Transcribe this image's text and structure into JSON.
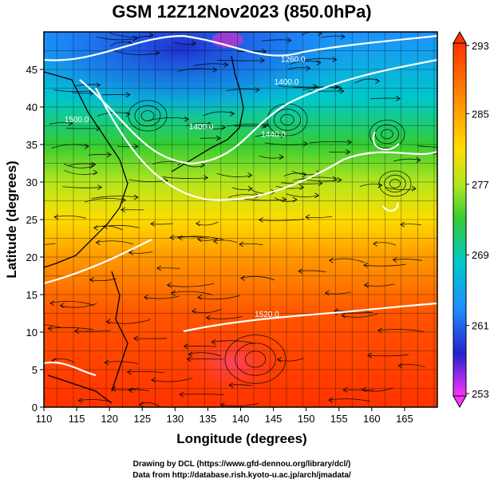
{
  "title": "GSM 12Z12Nov2023 (850.0hPa)",
  "chart_data": {
    "type": "heatmap",
    "title": "GSM 12Z12Nov2023 (850.0hPa)",
    "xlabel": "Longitude (degrees)",
    "ylabel": "Latitude (degrees)",
    "xlim": [
      110,
      170
    ],
    "ylim": [
      0,
      50
    ],
    "x_ticks": [
      "110",
      "115",
      "120",
      "125",
      "130",
      "135",
      "140",
      "145",
      "150",
      "155",
      "160",
      "165"
    ],
    "y_ticks": [
      "0",
      "5",
      "10",
      "15",
      "20",
      "25",
      "30",
      "35",
      "40",
      "45"
    ],
    "colorbar": {
      "min": 253,
      "max": 293,
      "tick_labels": [
        "293",
        "285",
        "277",
        "269",
        "261",
        "253"
      ],
      "stops": [
        "#ff33ff",
        "#2222cc",
        "#1e90ff",
        "#00c8c8",
        "#33cc33",
        "#b4e61e",
        "#ffdc00",
        "#ff9900",
        "#ff3300"
      ]
    },
    "contours": [
      {
        "label": "1260.0",
        "lon": 148,
        "lat": 46
      },
      {
        "label": "1400.0",
        "lon": 147,
        "lat": 43
      },
      {
        "label": "1400.0",
        "lon": 134,
        "lat": 37
      },
      {
        "label": "1440.0",
        "lon": 145,
        "lat": 36
      },
      {
        "label": "1500.0",
        "lon": 115,
        "lat": 38
      },
      {
        "label": "1520.0",
        "lon": 144,
        "lat": 12
      }
    ],
    "grid": true
  },
  "footer": {
    "line1": "Drawing by DCL (https://www.gfd-dennou.org/library/dcl/)",
    "line2": "Data from http://database.rish.kyoto-u.ac.jp/arch/jmadata/"
  }
}
